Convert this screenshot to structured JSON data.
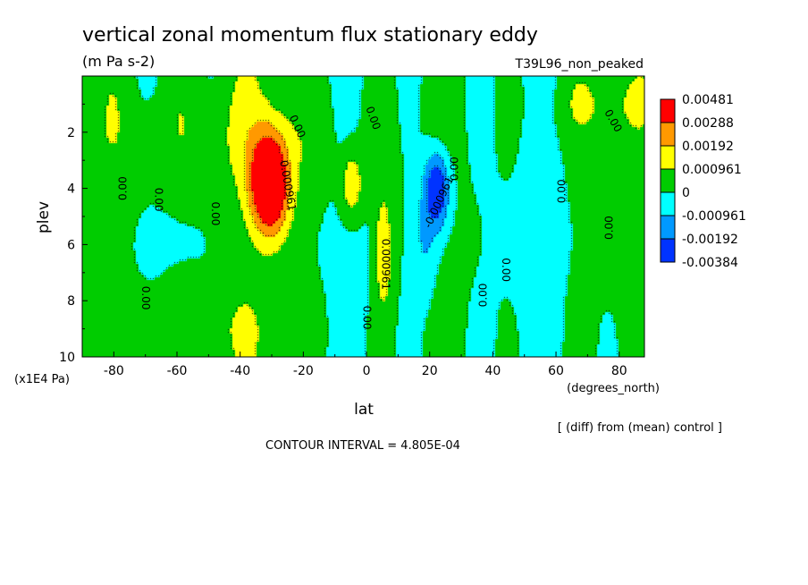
{
  "chart_data": {
    "type": "contour",
    "title": "vertical zonal momentum flux stationary eddy",
    "units": "(m Pa s-2)",
    "run_label": "T39L96_non_peaked",
    "xlabel": "lat",
    "x_units": "(degrees_north)",
    "ylabel": "plev",
    "y_units": "(x1E4 Pa)",
    "xlim": [
      -90,
      88
    ],
    "ylim": [
      0,
      10
    ],
    "y_inverted": true,
    "x_ticks": [
      "-80",
      "-60",
      "-40",
      "-20",
      "0",
      "20",
      "40",
      "60",
      "80"
    ],
    "x_tick_values": [
      -80,
      -60,
      -40,
      -20,
      0,
      20,
      40,
      60,
      80
    ],
    "y_ticks": [
      "2",
      "4",
      "6",
      "8",
      "10"
    ],
    "y_tick_values": [
      2,
      4,
      6,
      8,
      10
    ],
    "diff_note": "[ (diff) from (mean) control ]",
    "contour_interval": "CONTOUR INTERVAL = 4.805E-04",
    "legend": {
      "placement": "right",
      "levels": [
        "0.00481",
        "0.00288",
        "0.00192",
        "0.000961",
        "0",
        "-0.000961",
        "-0.00192",
        "-0.00384"
      ],
      "colors": [
        "#ff0000",
        "#ff9900",
        "#ffff00",
        "#00cc00",
        "#00ffff",
        "#0099ff",
        "#0033ff"
      ]
    },
    "contour_labels": [
      {
        "text": "0.00",
        "lat": -77,
        "p": 4.0,
        "rot": -90
      },
      {
        "text": "0.00",
        "lat": -66,
        "p": 4.4,
        "rot": 90
      },
      {
        "text": "0.00",
        "lat": -48,
        "p": 4.9,
        "rot": 90
      },
      {
        "text": "0.00",
        "lat": -70,
        "p": 7.9,
        "rot": 90
      },
      {
        "text": "0.00",
        "lat": -22,
        "p": 1.8,
        "rot": 65
      },
      {
        "text": "0.00",
        "lat": 2,
        "p": 1.5,
        "rot": 70
      },
      {
        "text": "0.000961",
        "lat": -25,
        "p": 3.9,
        "rot": 80
      },
      {
        "text": "0.000961",
        "lat": 6,
        "p": 6.7,
        "rot": 90
      },
      {
        "text": "-0.000961",
        "lat": 23,
        "p": 4.5,
        "rot": -65
      },
      {
        "text": "0.00",
        "lat": 28,
        "p": 3.3,
        "rot": -90
      },
      {
        "text": "0.00",
        "lat": 0,
        "p": 8.6,
        "rot": 90
      },
      {
        "text": "0.00",
        "lat": 37,
        "p": 7.8,
        "rot": -90
      },
      {
        "text": "0.00",
        "lat": 44,
        "p": 6.9,
        "rot": 90
      },
      {
        "text": "0.00",
        "lat": 62,
        "p": 4.1,
        "rot": -90
      },
      {
        "text": "0.00",
        "lat": 77,
        "p": 5.4,
        "rot": -90
      },
      {
        "text": "0.00",
        "lat": 78,
        "p": 1.6,
        "rot": 60
      }
    ],
    "fields": {
      "green_blobs": [
        {
          "lat": -50,
          "p": 2.0,
          "rl": 45,
          "rp": 2.5
        },
        {
          "lat": 75,
          "p": 1.0,
          "rl": 18,
          "rp": 1.3
        },
        {
          "lat": -55,
          "p": 9.0,
          "rl": 32,
          "rp": 1.8
        }
      ],
      "positive_peaks": [
        {
          "lat": -31,
          "p": 3.8,
          "rl": 6,
          "rp": 1.8,
          "amp": 0.005
        },
        {
          "lat": -5,
          "p": 3.8,
          "rl": 3.5,
          "rp": 1.2,
          "amp": 0.0018
        },
        {
          "lat": 5,
          "p": 6.2,
          "rl": 3,
          "rp": 2.2,
          "amp": 0.0017
        }
      ],
      "negative_peaks": [
        {
          "lat": 22,
          "p": 4.0,
          "rl": 4,
          "rp": 1.4,
          "amp": -0.0032
        },
        {
          "lat": 18,
          "p": 6.0,
          "rl": 4,
          "rp": 2.0,
          "amp": -0.0011
        }
      ]
    }
  }
}
